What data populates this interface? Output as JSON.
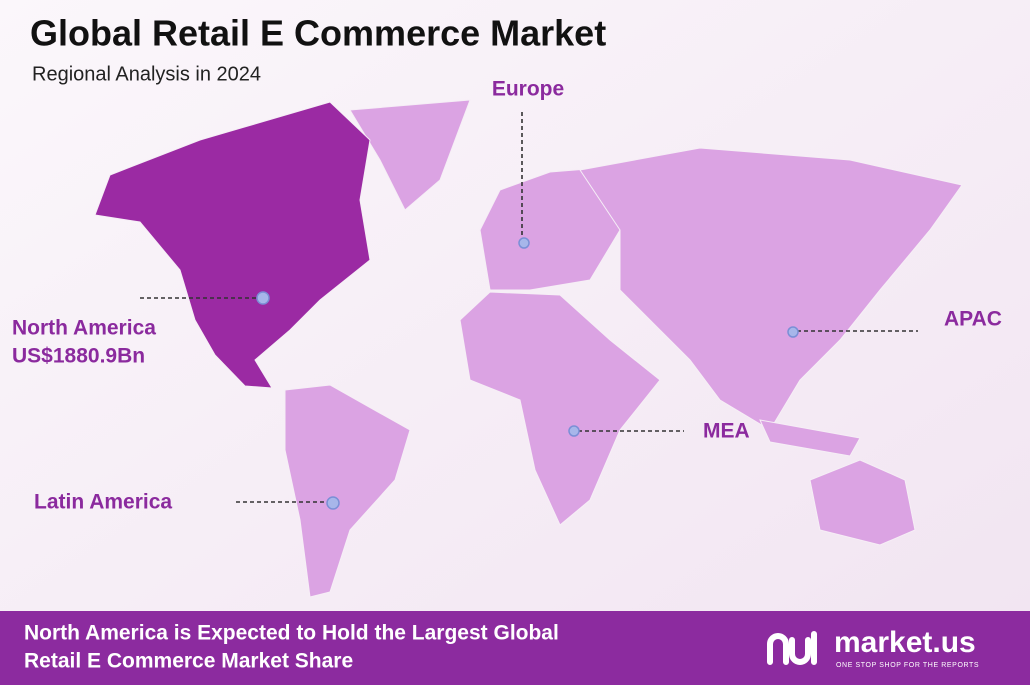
{
  "header": {
    "title": "Global Retail E Commerce Market",
    "subtitle": "Regional Analysis in 2024"
  },
  "regions": [
    {
      "name": "Europe"
    },
    {
      "name": "North America",
      "value": "US$1880.9Bn"
    },
    {
      "name": "APAC"
    },
    {
      "name": "MEA"
    },
    {
      "name": "Latin America"
    }
  ],
  "footer": {
    "lines": [
      "North America is Expected to Hold the Largest Global",
      "Retail E Commerce Market Share"
    ],
    "brand": "market.us",
    "tagline": "ONE STOP SHOP FOR THE REPORTS"
  }
}
